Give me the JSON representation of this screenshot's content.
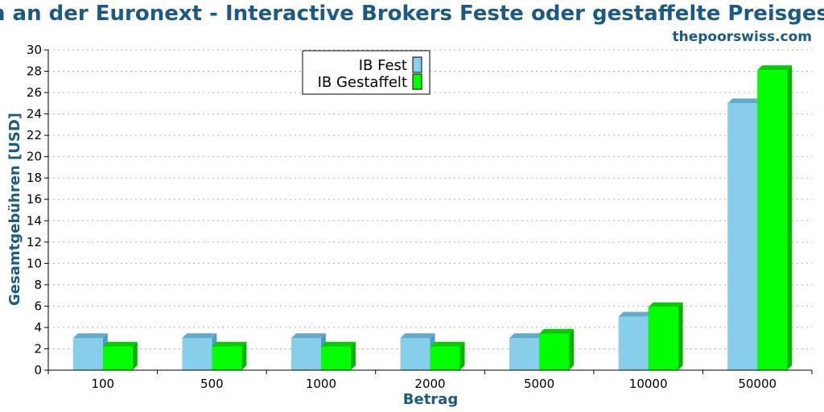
{
  "chart_data": {
    "type": "bar",
    "title": "n an der Euronext - Interactive Brokers Feste oder gestaffelte Preisgest",
    "subtitle": "thepoorswiss.com",
    "xlabel": "Betrag",
    "ylabel": "Gesamtgebühren [USD]",
    "ylim": [
      0,
      30
    ],
    "yticks": [
      "0",
      "2",
      "4",
      "6",
      "8",
      "10",
      "12",
      "14",
      "16",
      "18",
      "20",
      "22",
      "24",
      "26",
      "28",
      "30"
    ],
    "categories": [
      "100",
      "500",
      "1000",
      "2000",
      "5000",
      "10000",
      "50000"
    ],
    "series": [
      {
        "name": "IB Fest",
        "values": [
          3.0,
          3.0,
          3.0,
          3.0,
          3.0,
          5.0,
          25.0
        ]
      },
      {
        "name": "IB Gestaffelt",
        "values": [
          2.2,
          2.2,
          2.2,
          2.2,
          3.4,
          5.9,
          28.1
        ]
      }
    ],
    "grid": true,
    "legend_position": "top-center",
    "colors": {
      "series": [
        "#87ceeb",
        "#00ff00"
      ],
      "series_side": [
        "#4a9cc0",
        "#00b400"
      ],
      "series_top": [
        "#62a9cc",
        "#00cc00"
      ],
      "title": "#1b5a85",
      "grid": "#b0b0b0"
    }
  }
}
